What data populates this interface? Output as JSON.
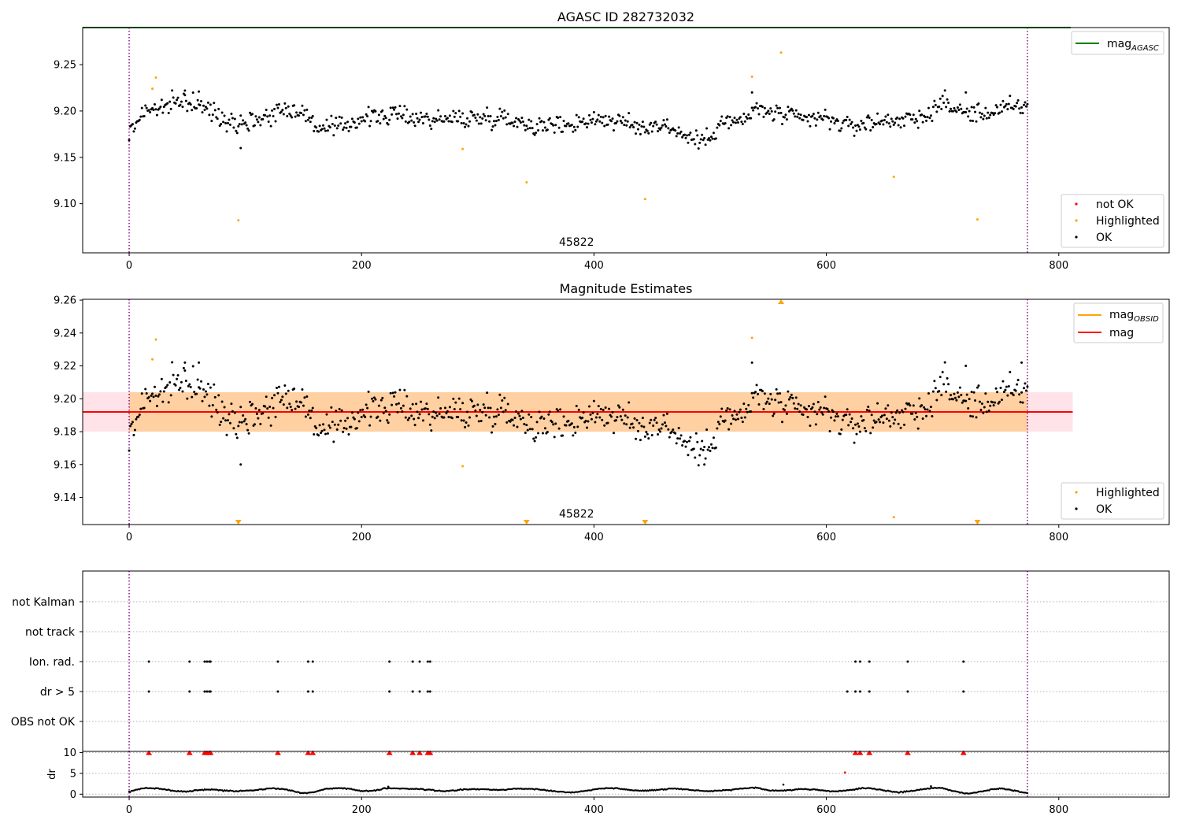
{
  "chart_data": [
    {
      "type": "scatter",
      "title": "AGASC ID 282732032",
      "xlim": [
        -40,
        895
      ],
      "ylim": [
        9.047,
        9.29
      ],
      "xticks": [
        0,
        200,
        400,
        600,
        800
      ],
      "yticks": [
        9.1,
        9.15,
        9.2,
        9.25
      ],
      "ytick_labels": [
        "9.10",
        "9.15",
        "9.20",
        "9.25"
      ],
      "obsid_label": "45822",
      "vlines": [
        0,
        773
      ],
      "series": [
        {
          "name": "mag_AGASC",
          "kind": "line",
          "y": 9.29,
          "color": "#008000"
        },
        {
          "name": "not OK",
          "kind": "points",
          "color": "#ff0000",
          "points": []
        },
        {
          "name": "Highlighted",
          "kind": "points",
          "color": "#ffa500",
          "points": [
            [
              20,
              9.224
            ],
            [
              23,
              9.236
            ],
            [
              94,
              9.082
            ],
            [
              287,
              9.159
            ],
            [
              342,
              9.123
            ],
            [
              444,
              9.105
            ],
            [
              536,
              9.237
            ],
            [
              561,
              9.263
            ],
            [
              658,
              9.129
            ],
            [
              730,
              9.083
            ]
          ]
        },
        {
          "name": "OK",
          "kind": "points",
          "color": "#000000",
          "generated": "trace",
          "trace": [
            [
              0,
              9.175
            ],
            [
              5,
              9.185
            ],
            [
              12,
              9.2
            ],
            [
              25,
              9.203
            ],
            [
              35,
              9.205
            ],
            [
              45,
              9.212
            ],
            [
              55,
              9.208
            ],
            [
              70,
              9.2
            ],
            [
              85,
              9.19
            ],
            [
              100,
              9.188
            ],
            [
              115,
              9.193
            ],
            [
              135,
              9.203
            ],
            [
              150,
              9.198
            ],
            [
              165,
              9.18
            ],
            [
              180,
              9.182
            ],
            [
              200,
              9.192
            ],
            [
              230,
              9.196
            ],
            [
              260,
              9.191
            ],
            [
              290,
              9.192
            ],
            [
              320,
              9.194
            ],
            [
              350,
              9.184
            ],
            [
              380,
              9.186
            ],
            [
              400,
              9.192
            ],
            [
              420,
              9.189
            ],
            [
              440,
              9.182
            ],
            [
              460,
              9.186
            ],
            [
              480,
              9.172
            ],
            [
              495,
              9.167
            ],
            [
              510,
              9.189
            ],
            [
              525,
              9.187
            ],
            [
              540,
              9.202
            ],
            [
              560,
              9.196
            ],
            [
              580,
              9.191
            ],
            [
              600,
              9.192
            ],
            [
              620,
              9.183
            ],
            [
              640,
              9.188
            ],
            [
              660,
              9.191
            ],
            [
              680,
              9.19
            ],
            [
              700,
              9.21
            ],
            [
              715,
              9.199
            ],
            [
              735,
              9.197
            ],
            [
              755,
              9.203
            ],
            [
              773,
              9.205
            ]
          ],
          "spread": 0.01
        },
        {
          "name": "OK outliers",
          "kind": "points",
          "color": "#000000",
          "points": [
            [
              96,
              9.16
            ],
            [
              48,
              9.222
            ],
            [
              60,
              9.221
            ],
            [
              536,
              9.22
            ],
            [
              720,
              9.22
            ]
          ]
        }
      ],
      "legends": [
        {
          "position": "top-right",
          "entries": [
            {
              "label": "mag",
              "sub": "AGASC",
              "kind": "line",
              "color": "#008000"
            }
          ]
        },
        {
          "position": "bottom-right",
          "entries": [
            {
              "label": "not OK",
              "kind": "dot",
              "color": "#ff0000"
            },
            {
              "label": "Highlighted",
              "kind": "dot",
              "color": "#ffa500"
            },
            {
              "label": "OK",
              "kind": "dot",
              "color": "#000000"
            }
          ]
        }
      ]
    },
    {
      "type": "scatter",
      "title": "Magnitude Estimates",
      "xlim": [
        -40,
        895
      ],
      "ylim": [
        9.1235,
        9.2605
      ],
      "xticks": [
        0,
        200,
        400,
        600,
        800
      ],
      "yticks": [
        9.14,
        9.16,
        9.18,
        9.2,
        9.22,
        9.24,
        9.26
      ],
      "ytick_labels": [
        "9.14",
        "9.16",
        "9.18",
        "9.20",
        "9.22",
        "9.24",
        "9.26"
      ],
      "obsid_label": "45822",
      "vlines": [
        0,
        773
      ],
      "bands": [
        {
          "from_x": -40,
          "to_x": 812,
          "y_low": 9.18,
          "y_high": 9.204,
          "color": "#ffc0cb",
          "alpha": 0.45
        },
        {
          "from_x": 0,
          "to_x": 773,
          "y_low": 9.18,
          "y_high": 9.204,
          "color": "#ffa500",
          "alpha": 0.3
        }
      ],
      "series": [
        {
          "name": "mag_OBSID",
          "kind": "line",
          "x": [
            0,
            773
          ],
          "y": 9.192,
          "color": "#ffa500"
        },
        {
          "name": "mag",
          "kind": "line",
          "x": [
            -40,
            812
          ],
          "y": 9.192,
          "color": "#ff0000"
        },
        {
          "name": "Highlighted",
          "kind": "points",
          "color": "#ffa500",
          "points": [
            [
              20,
              9.224
            ],
            [
              23,
              9.236
            ],
            [
              287,
              9.159
            ],
            [
              536,
              9.237
            ],
            [
              658,
              9.128
            ]
          ]
        },
        {
          "name": "Highlighted (off-scale)",
          "kind": "triangles",
          "color": "#ffa500",
          "points": [
            [
              94,
              "down"
            ],
            [
              342,
              "down"
            ],
            [
              444,
              "down"
            ],
            [
              730,
              "down"
            ],
            [
              561,
              "up"
            ]
          ]
        },
        {
          "name": "OK",
          "kind": "points",
          "color": "#000000",
          "generated": "trace",
          "trace": [
            [
              0,
              9.175
            ],
            [
              5,
              9.185
            ],
            [
              12,
              9.2
            ],
            [
              25,
              9.203
            ],
            [
              35,
              9.205
            ],
            [
              45,
              9.212
            ],
            [
              55,
              9.208
            ],
            [
              70,
              9.2
            ],
            [
              85,
              9.19
            ],
            [
              100,
              9.188
            ],
            [
              115,
              9.193
            ],
            [
              135,
              9.203
            ],
            [
              150,
              9.198
            ],
            [
              165,
              9.18
            ],
            [
              180,
              9.182
            ],
            [
              200,
              9.192
            ],
            [
              230,
              9.196
            ],
            [
              260,
              9.191
            ],
            [
              290,
              9.192
            ],
            [
              320,
              9.194
            ],
            [
              350,
              9.184
            ],
            [
              380,
              9.186
            ],
            [
              400,
              9.192
            ],
            [
              420,
              9.189
            ],
            [
              440,
              9.182
            ],
            [
              460,
              9.186
            ],
            [
              480,
              9.172
            ],
            [
              495,
              9.167
            ],
            [
              510,
              9.189
            ],
            [
              525,
              9.187
            ],
            [
              540,
              9.202
            ],
            [
              560,
              9.196
            ],
            [
              580,
              9.191
            ],
            [
              600,
              9.192
            ],
            [
              620,
              9.183
            ],
            [
              640,
              9.188
            ],
            [
              660,
              9.191
            ],
            [
              680,
              9.19
            ],
            [
              700,
              9.21
            ],
            [
              715,
              9.199
            ],
            [
              735,
              9.197
            ],
            [
              755,
              9.203
            ],
            [
              773,
              9.205
            ]
          ],
          "spread": 0.01
        },
        {
          "name": "OK outliers",
          "kind": "points",
          "color": "#000000",
          "points": [
            [
              96,
              9.16
            ],
            [
              48,
              9.222
            ],
            [
              60,
              9.222
            ],
            [
              536,
              9.222
            ],
            [
              720,
              9.22
            ],
            [
              768,
              9.222
            ],
            [
              495,
              9.16
            ]
          ]
        }
      ],
      "legends": [
        {
          "position": "top-right",
          "entries": [
            {
              "label": "mag",
              "sub": "OBSID",
              "kind": "line",
              "color": "#ffa500"
            },
            {
              "label": "mag",
              "sub": "",
              "kind": "line",
              "color": "#ff0000"
            }
          ]
        },
        {
          "position": "bottom-right",
          "entries": [
            {
              "label": "Highlighted",
              "kind": "dot",
              "color": "#ffa500"
            },
            {
              "label": "OK",
              "kind": "dot",
              "color": "#000000"
            }
          ]
        }
      ]
    },
    {
      "type": "scatter",
      "title": "",
      "xlim": [
        -40,
        895
      ],
      "categories": [
        "not Kalman",
        "not track",
        "Ion. rad.",
        "dr > 5",
        "OBS not OK"
      ],
      "grid": true,
      "vlines": [
        0,
        773
      ],
      "flags": {
        "not Kalman": [],
        "not track": [],
        "Ion. rad.": [
          17,
          52,
          65,
          67,
          69,
          70,
          128,
          154,
          158,
          224,
          244,
          250,
          257,
          259,
          625,
          629,
          637,
          670,
          718
        ],
        "dr > 5": [
          17,
          52,
          65,
          67,
          69,
          70,
          128,
          154,
          158,
          224,
          244,
          250,
          257,
          259,
          618,
          625,
          629,
          637,
          670,
          718
        ],
        "OBS not OK": []
      }
    },
    {
      "type": "scatter",
      "title": "",
      "ylabel": "dr",
      "xlim": [
        -40,
        895
      ],
      "ylim": [
        -0.7,
        10.3
      ],
      "xticks": [
        0,
        200,
        400,
        600,
        800
      ],
      "yticks": [
        0,
        5,
        10
      ],
      "ytick_labels": [
        "0",
        "5",
        "10"
      ],
      "vlines": [
        0,
        773
      ],
      "series": [
        {
          "name": "dr",
          "kind": "points",
          "color": "#000000",
          "generated": "trace",
          "trace": [
            [
              0,
              0.5
            ],
            [
              10,
              1.0
            ],
            [
              30,
              1.3
            ],
            [
              50,
              0.9
            ],
            [
              80,
              0.7
            ],
            [
              100,
              1.2
            ],
            [
              130,
              1.0
            ],
            [
              150,
              0.5
            ],
            [
              170,
              1.3
            ],
            [
              200,
              0.8
            ],
            [
              220,
              1.6
            ],
            [
              240,
              0.9
            ],
            [
              260,
              1.2
            ],
            [
              300,
              0.8
            ],
            [
              330,
              1.6
            ],
            [
              360,
              0.6
            ],
            [
              400,
              1.0
            ],
            [
              430,
              1.3
            ],
            [
              460,
              0.9
            ],
            [
              490,
              1.2
            ],
            [
              520,
              0.7
            ],
            [
              540,
              1.6
            ],
            [
              570,
              0.8
            ],
            [
              600,
              1.0
            ],
            [
              630,
              1.1
            ],
            [
              660,
              0.8
            ],
            [
              700,
              1.2
            ],
            [
              720,
              0.5
            ],
            [
              750,
              1.0
            ],
            [
              773,
              0.6
            ]
          ],
          "spread": 0.4
        },
        {
          "name": "dr outliers",
          "kind": "points",
          "color": "#000000",
          "points": [
            [
              563,
              2.3
            ],
            [
              616,
              5.2
            ],
            [
              223,
              1.8
            ],
            [
              690,
              1.9
            ]
          ]
        },
        {
          "name": "dr > 5 (off-scale)",
          "kind": "triangles",
          "color": "#ff0000",
          "points": [
            [
              17,
              "up"
            ],
            [
              52,
              "up"
            ],
            [
              65,
              "up"
            ],
            [
              67,
              "up"
            ],
            [
              69,
              "up"
            ],
            [
              70,
              "up"
            ],
            [
              128,
              "up"
            ],
            [
              154,
              "up"
            ],
            [
              158,
              "up"
            ],
            [
              224,
              "up"
            ],
            [
              244,
              "up"
            ],
            [
              250,
              "up"
            ],
            [
              257,
              "up"
            ],
            [
              259,
              "up"
            ],
            [
              625,
              "up"
            ],
            [
              629,
              "up"
            ],
            [
              637,
              "up"
            ],
            [
              670,
              "up"
            ],
            [
              718,
              "up"
            ]
          ]
        }
      ]
    }
  ]
}
